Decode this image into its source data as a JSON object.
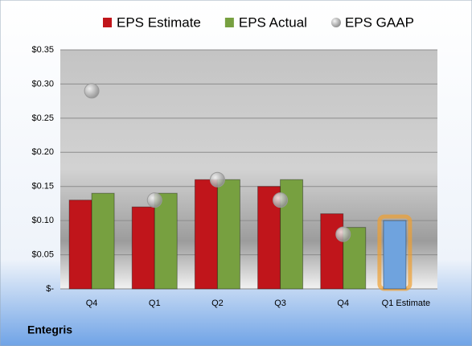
{
  "chart_data": {
    "type": "bar",
    "title": "Entegris",
    "categories": [
      "Q4",
      "Q1",
      "Q2",
      "Q3",
      "Q4",
      "Q1 Estimate"
    ],
    "series": [
      {
        "name": "EPS Estimate",
        "color": "#c0151b",
        "colors": [
          "#c0151b",
          "#c0151b",
          "#c0151b",
          "#c0151b",
          "#c0151b",
          "#6fa3de"
        ],
        "highlight_color": "#f0a030",
        "values": [
          0.13,
          0.12,
          0.16,
          0.15,
          0.11,
          0.1
        ]
      },
      {
        "name": "EPS Actual",
        "color": "#77a040",
        "values": [
          0.14,
          0.14,
          0.16,
          0.16,
          0.09,
          null
        ]
      },
      {
        "name": "EPS GAAP",
        "color": "#a8a8a8",
        "marker": "bubble",
        "values": [
          0.29,
          0.13,
          0.16,
          0.13,
          0.08,
          null
        ]
      }
    ],
    "ylim": [
      0,
      0.35
    ],
    "yticks": [
      {
        "value": 0,
        "label": "$-"
      },
      {
        "value": 0.05,
        "label": "$0.05"
      },
      {
        "value": 0.1,
        "label": "$0.10"
      },
      {
        "value": 0.15,
        "label": "$0.15"
      },
      {
        "value": 0.2,
        "label": "$0.20"
      },
      {
        "value": 0.25,
        "label": "$0.25"
      },
      {
        "value": 0.3,
        "label": "$0.30"
      },
      {
        "value": 0.35,
        "label": "$0.35"
      }
    ],
    "grid": true,
    "legend": "top"
  }
}
